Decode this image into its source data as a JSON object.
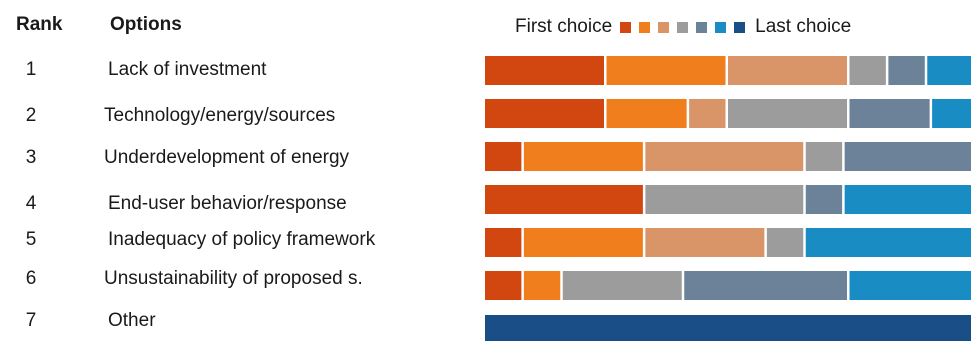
{
  "headers": {
    "rank": "Rank",
    "options": "Options"
  },
  "legend": {
    "first_label": "First choice",
    "last_label": "Last choice"
  },
  "colors": [
    "#d2470f",
    "#f07e1d",
    "#d99468",
    "#9c9c9c",
    "#6b8298",
    "#1a8cc4",
    "#1a4e86"
  ],
  "chart_data": {
    "type": "bar",
    "orientation": "horizontal",
    "stacked": true,
    "xlim": [
      0,
      100
    ],
    "categories": [
      {
        "rank": "1",
        "label": "Lack of investment"
      },
      {
        "rank": "2",
        "label": "Technology/energy/sources"
      },
      {
        "rank": "3",
        "label": "Underdevelopment of energy"
      },
      {
        "rank": "4",
        "label": "End-user behavior/response"
      },
      {
        "rank": "5",
        "label": "Inadequacy of policy framework"
      },
      {
        "rank": "6",
        "label": "Unsustainability of proposed s."
      },
      {
        "rank": "7",
        "label": "Other"
      }
    ],
    "segments": [
      [
        25,
        25,
        25,
        8,
        8,
        9,
        0
      ],
      [
        25,
        17,
        8,
        25,
        17,
        8,
        0
      ],
      [
        8,
        25,
        33,
        8,
        26,
        0,
        0
      ],
      [
        33,
        0,
        0,
        33,
        8,
        26,
        0
      ],
      [
        8,
        25,
        25,
        8,
        0,
        34,
        0
      ],
      [
        8,
        8,
        0,
        25,
        34,
        25,
        0
      ],
      [
        0,
        0,
        0,
        0,
        0,
        0,
        100
      ]
    ]
  }
}
